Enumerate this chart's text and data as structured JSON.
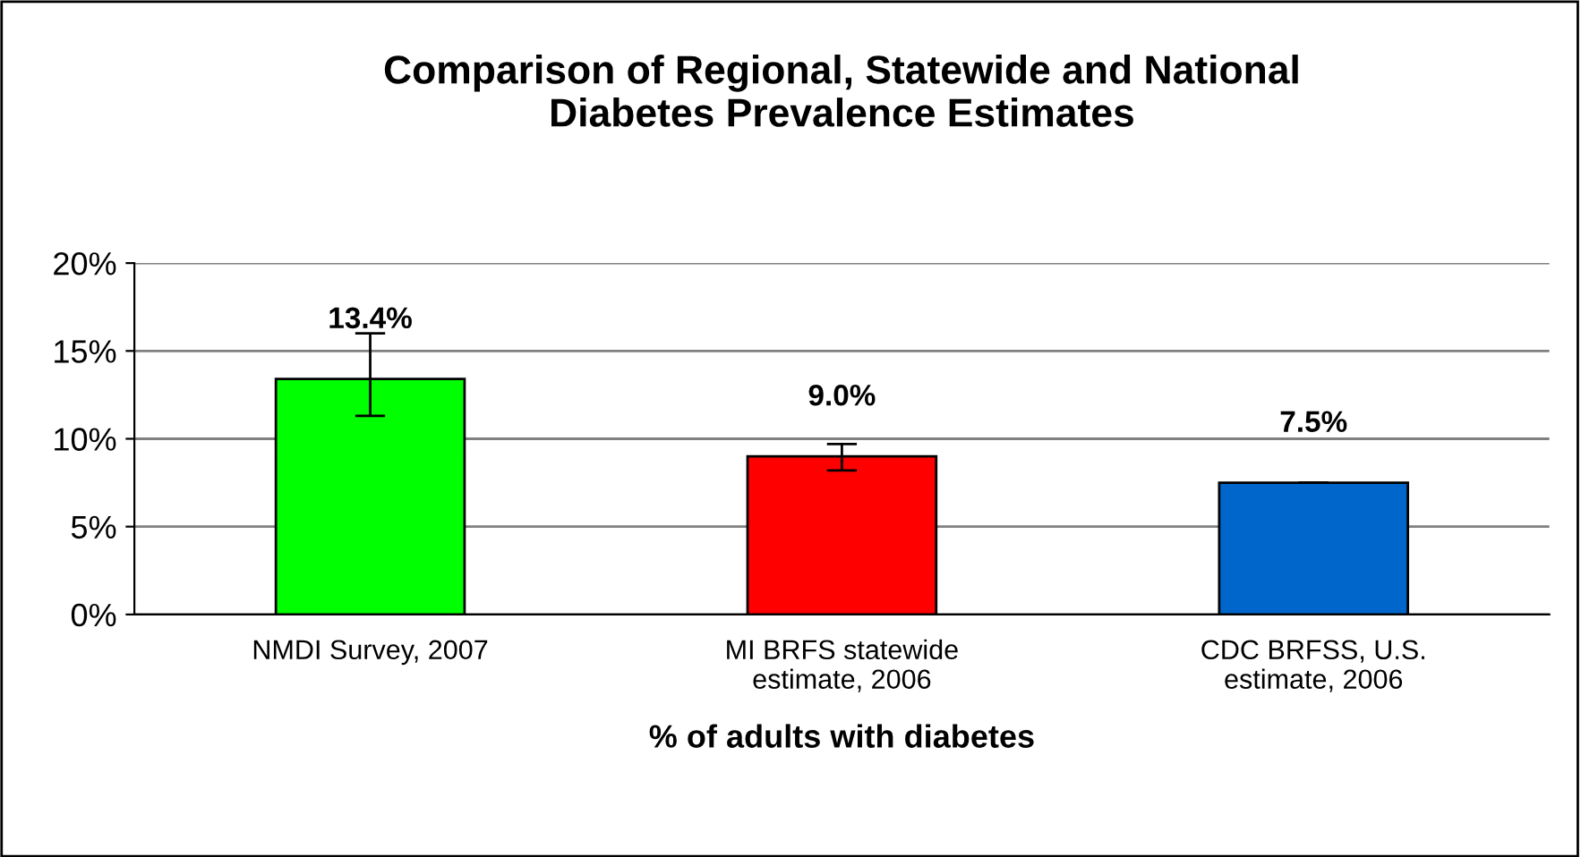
{
  "chart_data": {
    "type": "bar",
    "title": "Comparison of Regional, Statewide and National\nDiabetes Prevalence Estimates",
    "categories": [
      "NMDI Survey, 2007",
      "MI BRFS statewide\nestimate, 2006",
      "CDC BRFSS, U.S.\nestimate, 2006"
    ],
    "values": [
      13.4,
      9.0,
      7.5
    ],
    "colors": [
      "#00ff00",
      "#ff0000",
      "#0066cc"
    ],
    "errors": [
      [
        11.3,
        16.0
      ],
      [
        8.2,
        9.7
      ],
      [
        7.5,
        7.5
      ]
    ],
    "value_labels": [
      "13.4%",
      "9.0%",
      "7.5%"
    ],
    "xlabel": "% of adults with diabetes",
    "ylim": [
      0,
      20
    ],
    "yticks": [
      {
        "value": 0,
        "label": "0%"
      },
      {
        "value": 5,
        "label": "5%"
      },
      {
        "value": 10,
        "label": "10%"
      },
      {
        "value": 15,
        "label": "15%"
      },
      {
        "value": 20,
        "label": "20%"
      }
    ],
    "grid": "y"
  }
}
